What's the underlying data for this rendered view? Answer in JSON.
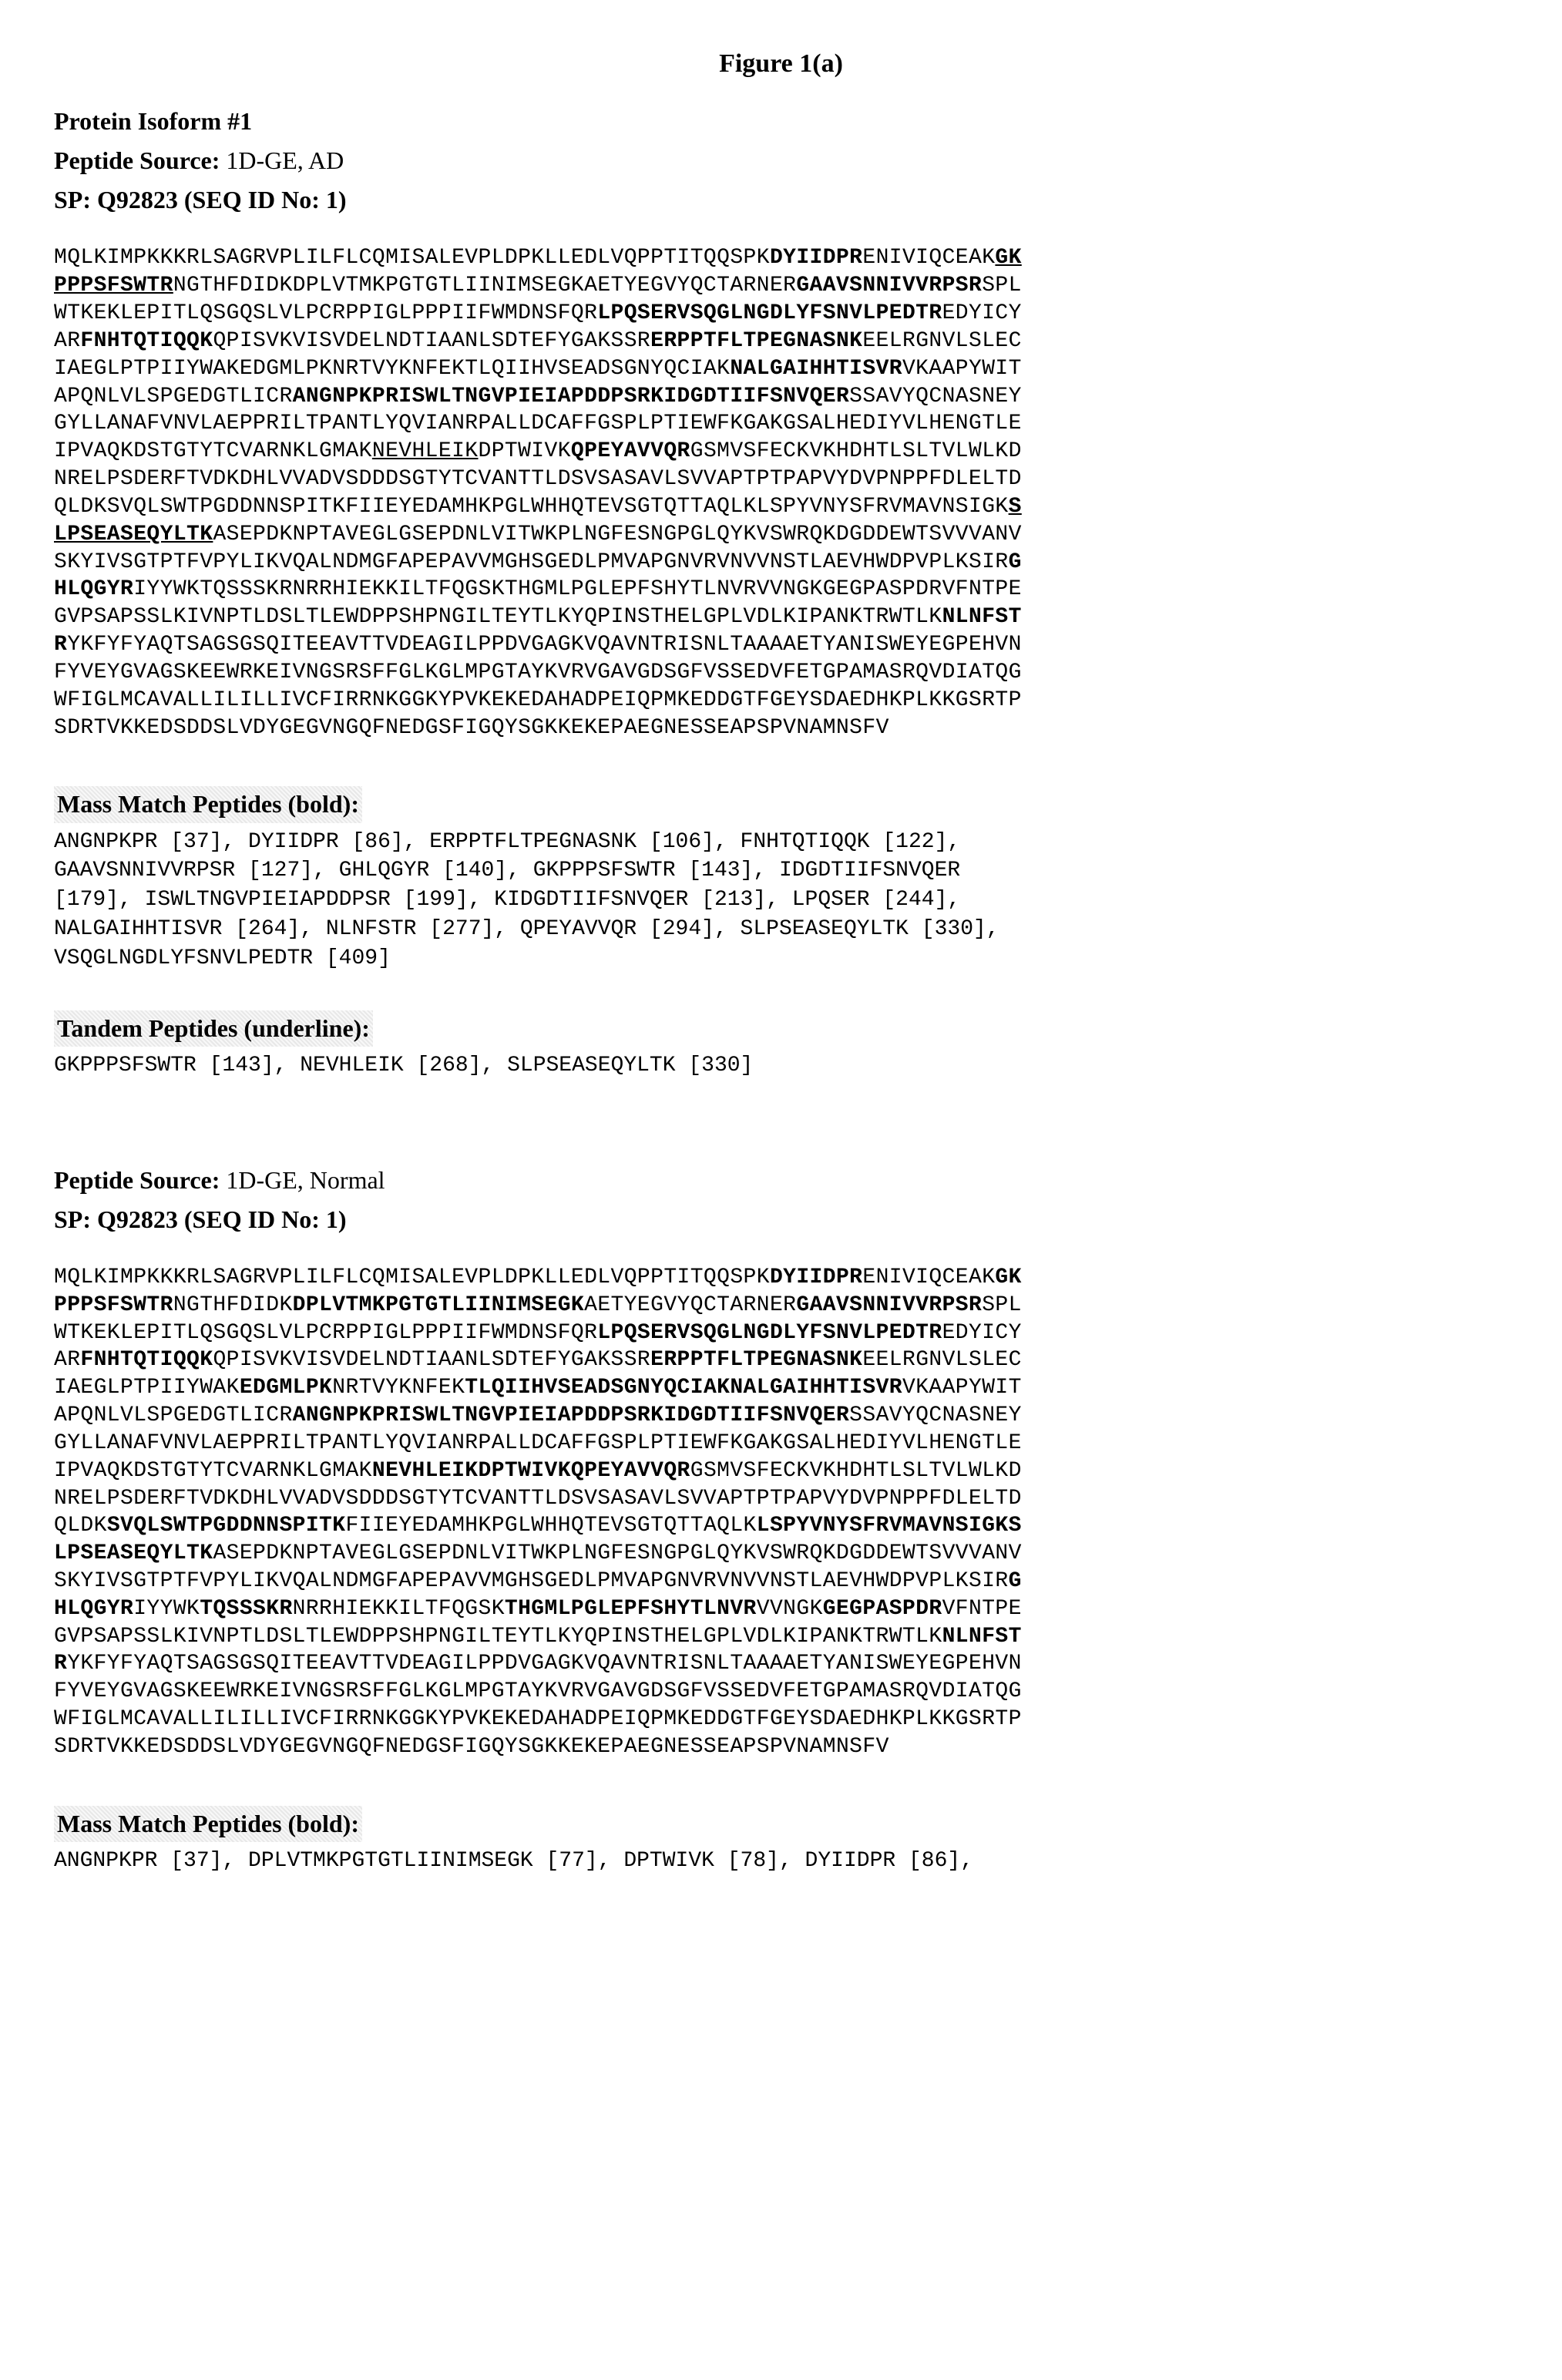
{
  "figure_title": "Figure 1(a)",
  "section1": {
    "header": {
      "isoform_label": "Protein Isoform #1",
      "source_label": "Peptide Source:",
      "source_value": "1D-GE, AD",
      "sp_label": "SP:",
      "sp_value": "Q92823 (SEQ ID No: 1)"
    },
    "sequence_rows": [
      [
        [
          "",
          "MQLKIMPKKKRLSAGRVPLILFLCQMISALEVPLDPKLLEDLVQPPTITQQSPK"
        ],
        [
          "b",
          "DYIIDPR"
        ],
        [
          "",
          "ENIVIQCEAK"
        ],
        [
          "bu",
          "GK"
        ]
      ],
      [
        [
          "bu",
          "PPPSFSWTR"
        ],
        [
          "",
          "NGTHFDIDKDPLVTMKPGTGTLIINIMSEGKAETYEGVYQCTARNER"
        ],
        [
          "b",
          "GAAVSNNIVVRPSR"
        ],
        [
          "",
          "SPL"
        ]
      ],
      [
        [
          "",
          "WTKEKLEPITLQSGQSLVLPCRPPIGLPPPIIFWMDNSFQR"
        ],
        [
          "b",
          "LPQSERVSQGLNGDLYFSNVLPEDTR"
        ],
        [
          "",
          "EDYICY"
        ]
      ],
      [
        [
          "",
          "AR"
        ],
        [
          "b",
          "FNHTQTIQQK"
        ],
        [
          "",
          "QPISVKVISVDELNDTIAANLSDTEFYGAKSSR"
        ],
        [
          "b",
          "ERPPTFLTPEGNASNK"
        ],
        [
          "",
          "EELRGNVLSLEC"
        ]
      ],
      [
        [
          "",
          "IAEGLPTPIIYWAKEDGMLPKNRTVYKNFEKTLQIIHVSEADSGNYQCIAK"
        ],
        [
          "b",
          "NALGAIHHTISVR"
        ],
        [
          "",
          "VKAAPYWIT"
        ]
      ],
      [
        [
          "",
          "APQNLVLSPGEDGTLICR"
        ],
        [
          "b",
          "ANGNPKPRISWLTNGVPIEIAPDDPSRKIDGDTIIFSNVQER"
        ],
        [
          "",
          "SSAVYQCNASNEY"
        ]
      ],
      [
        [
          "",
          "GYLLANAFVNVLAEPPRILTPANTLYQVIANRPALLDCAFFGSPLPTIEWFKGAKGSALHEDIYVLHENGTLE"
        ]
      ],
      [
        [
          "",
          "IPVAQKDSTGTYTCVARNKLGMAK"
        ],
        [
          "u",
          "NEVHLEIK"
        ],
        [
          "",
          "DPTWIVK"
        ],
        [
          "b",
          "QPEYAVVQR"
        ],
        [
          "",
          "GSMVSFECKVKHDHTLSLTVLWLKD"
        ]
      ],
      [
        [
          "",
          "NRELPSDERFTVDKDHLVVADVSDDDSGTYTCVANTTLDSVSASAVLSVVAPTPTPAPVYDVPNPPFDLELTD"
        ]
      ],
      [
        [
          "",
          "QLDKSVQLSWTPGDDNNSPITKFIIEYEDAMHKPGLWHHQTEVSGTQTTAQLKLSPYVNYSFRVMAVNSIGK"
        ],
        [
          "bu",
          "S"
        ]
      ],
      [
        [
          "bu",
          "LPSEASEQYLTK"
        ],
        [
          "",
          "ASEPDKNPTAVEGLGSEPDNLVITWKPLNGFESNGPGLQYKVSWRQKDGDDEWTSVVVANV"
        ]
      ],
      [
        [
          "",
          "SKYIVSGTPTFVPYLIKVQALNDMGFAPEPAVVMGHSGEDLPMVAPGNVRVNVVNSTLAEVHWDPVPLKSIR"
        ],
        [
          "b",
          "G"
        ]
      ],
      [
        [
          "b",
          "HLQGYR"
        ],
        [
          "",
          "IYYWKTQSSSKRNRRHIEKKILTFQGSKTHGMLPGLEPFSHYTLNVRVVNGKGEGPASPDRVFNTPE"
        ]
      ],
      [
        [
          "",
          "GVPSAPSSLKIVNPTLDSLTLEWDPPSHPNGILTEYTLKYQPINSTHELGPLVDLKIPANKTRWTLK"
        ],
        [
          "b",
          "NLNFST"
        ]
      ],
      [
        [
          "b",
          "R"
        ],
        [
          "",
          "YKFYFYAQTSAGSGSQITEEAVTTVDEAGILPPDVGAGKVQAVNTRISNLTAAAAETYANISWEYEGPEHVN"
        ]
      ],
      [
        [
          "",
          "FYVEYGVAGSKEEWRKEIVNGSRSFFGLKGLMPGTAYKVRVGAVGDSGFVSSEDVFETGPAMASRQVDIATQG"
        ]
      ],
      [
        [
          "",
          "WFIGLMCAVALLILILLIVCFIRRNKGGKYPVKEKEDAHADPEIQPMKEDDGTFGEYSDAEDHKPLKKGSRTP"
        ]
      ],
      [
        [
          "",
          "SDRTVKKEDSDDSLVDYGEGVNGQFNEDGSFIGQYSGKKEKEPAEGNESSEAPSPVNAMNSFV"
        ]
      ]
    ],
    "mass_match": {
      "label": "Mass Match Peptides (bold):",
      "text": "ANGNPKPR [37], DYIIDPR [86], ERPPTFLTPEGNASNK [106], FNHTQTIQQK [122],\nGAAVSNNIVVRPSR [127], GHLQGYR [140], GKPPPSFSWTR [143], IDGDTIIFSNVQER\n[179], ISWLTNGVPIEIAPDDPSR [199], KIDGDTIIFSNVQER [213], LPQSER [244],\nNALGAIHHTISVR [264], NLNFSTR [277], QPEYAVVQR [294], SLPSEASEQYLTK [330],\nVSQGLNGDLYFSNVLPEDTR [409]"
    },
    "tandem": {
      "label": "Tandem Peptides (underline):",
      "text": "GKPPPSFSWTR [143], NEVHLEIK [268], SLPSEASEQYLTK [330]"
    }
  },
  "section2": {
    "header": {
      "source_label": "Peptide Source:",
      "source_value": "1D-GE, Normal",
      "sp_label": "SP:",
      "sp_value": "Q92823 (SEQ ID No: 1)"
    },
    "sequence_rows": [
      [
        [
          "",
          "MQLKIMPKKKRLSAGRVPLILFLCQMISALEVPLDPKLLEDLVQPPTITQQSPK"
        ],
        [
          "b",
          "DYIIDPR"
        ],
        [
          "",
          "ENIVIQCEAK"
        ],
        [
          "b",
          "GK"
        ]
      ],
      [
        [
          "b",
          "PPPSFSWTR"
        ],
        [
          "",
          "NGTHFDIDK"
        ],
        [
          "b",
          "DPLVTMKPGTGTLIINIMSEGK"
        ],
        [
          "",
          "AETYEGVYQCTARNER"
        ],
        [
          "b",
          "GAAVSNNIVVRPSR"
        ],
        [
          "",
          "SPL"
        ]
      ],
      [
        [
          "",
          "WTKEKLEPITLQSGQSLVLPCRPPIGLPPPIIFWMDNSFQR"
        ],
        [
          "b",
          "LPQSERVSQGLNGDLYFSNVLPEDTR"
        ],
        [
          "",
          "EDYICY"
        ]
      ],
      [
        [
          "",
          "AR"
        ],
        [
          "b",
          "FNHTQTIQQK"
        ],
        [
          "",
          "QPISVKVISVDELNDTIAANLSDTEFYGAKSSR"
        ],
        [
          "b",
          "ERPPTFLTPEGNASNK"
        ],
        [
          "",
          "EELRGNVLSLEC"
        ]
      ],
      [
        [
          "",
          "IAEGLPTPIIYWAK"
        ],
        [
          "b",
          "EDGMLPK"
        ],
        [
          "",
          "NRTVYKNFEK"
        ],
        [
          "b",
          "TLQIIHVSEADSGNYQCIAKNALGAIHHTISVR"
        ],
        [
          "",
          "VKAAPYWIT"
        ]
      ],
      [
        [
          "",
          "APQNLVLSPGEDGTLICR"
        ],
        [
          "b",
          "ANGNPKPRISWLTNGVPIEIAPDDPSRKIDGDTIIFSNVQER"
        ],
        [
          "",
          "SSAVYQCNASNEY"
        ]
      ],
      [
        [
          "",
          "GYLLANAFVNVLAEPPRILTPANTLYQVIANRPALLDCAFFGSPLPTIEWFKGAKGSALHEDIYVLHENGTLE"
        ]
      ],
      [
        [
          "",
          "IPVAQKDSTGTYTCVARNKLGMAK"
        ],
        [
          "b",
          "NEVHLEIKDPTWIVKQPEYAVVQR"
        ],
        [
          "",
          "GSMVSFECKVKHDHTLSLTVLWLKD"
        ]
      ],
      [
        [
          "",
          "NRELPSDERFTVDKDHLVVADVSDDDSGTYTCVANTTLDSVSASAVLSVVAPTPTPAPVYDVPNPPFDLELTD"
        ]
      ],
      [
        [
          "",
          "QLDK"
        ],
        [
          "b",
          "SVQLSWTPGDDNNSPITK"
        ],
        [
          "",
          "FIIEYEDAMHKPGLWHHQTEVSGTQTTAQLK"
        ],
        [
          "b",
          "LSPYVNYSFRVMAVNSIGKS"
        ]
      ],
      [
        [
          "b",
          "LPSEASEQYLTK"
        ],
        [
          "",
          "ASEPDKNPTAVEGLGSEPDNLVITWKPLNGFESNGPGLQYKVSWRQKDGDDEWTSVVVANV"
        ]
      ],
      [
        [
          "",
          "SKYIVSGTPTFVPYLIKVQALNDMGFAPEPAVVMGHSGEDLPMVAPGNVRVNVVNSTLAEVHWDPVPLKSIR"
        ],
        [
          "b",
          "G"
        ]
      ],
      [
        [
          "b",
          "HLQGYR"
        ],
        [
          "",
          "IYYWK"
        ],
        [
          "b",
          "TQSSSKR"
        ],
        [
          "",
          "NRRHIEKKILTFQGSK"
        ],
        [
          "b",
          "THGMLPGLEPFSHYTLNVR"
        ],
        [
          "",
          "VVNGK"
        ],
        [
          "b",
          "GEGPASPDR"
        ],
        [
          "",
          "VFNTPE"
        ]
      ],
      [
        [
          "",
          "GVPSAPSSLKIVNPTLDSLTLEWDPPSHPNGILTEYTLKYQPINSTHELGPLVDLKIPANKTRWTLK"
        ],
        [
          "b",
          "NLNFST"
        ]
      ],
      [
        [
          "b",
          "R"
        ],
        [
          "",
          "YKFYFYAQTSAGSGSQITEEAVTTVDEAGILPPDVGAGKVQAVNTRISNLTAAAAETYANISWEYEGPEHVN"
        ]
      ],
      [
        [
          "",
          "FYVEYGVAGSKEEWRKEIVNGSRSFFGLKGLMPGTAYKVRVGAVGDSGFVSSEDVFETGPAMASRQVDIATQG"
        ]
      ],
      [
        [
          "",
          "WFIGLMCAVALLILILLIVCFIRRNKGGKYPVKEKEDAHADPEIQPMKEDDGTFGEYSDAEDHKPLKKGSRTP"
        ]
      ],
      [
        [
          "",
          "SDRTVKKEDSDDSLVDYGEGVNGQFNEDGSFIGQYSGKKEKEPAEGNESSEAPSPVNAMNSFV"
        ]
      ]
    ],
    "mass_match": {
      "label": "Mass Match Peptides (bold):",
      "text": "ANGNPKPR [37], DPLVTMKPGTGTLIINIMSEGK [77], DPTWIVK [78], DYIIDPR [86],"
    }
  }
}
